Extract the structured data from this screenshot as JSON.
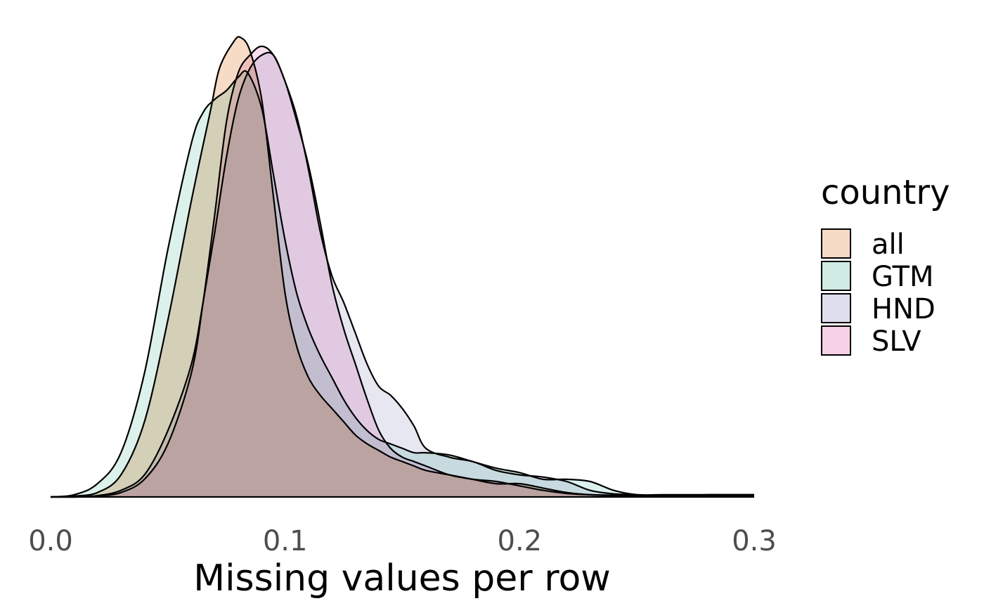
{
  "chart_data": {
    "type": "area",
    "subtype": "density",
    "xlabel": "Missing values per row",
    "ylabel": "",
    "xlim": [
      0.0,
      0.3
    ],
    "ylim": [
      0,
      1.05
    ],
    "y_axis_visible": false,
    "grid": false,
    "x_ticks": [
      0.0,
      0.1,
      0.2,
      0.3
    ],
    "x_tick_labels": [
      "0.0",
      "0.1",
      "0.2",
      "0.3"
    ],
    "legend": {
      "title": "country",
      "position": "right"
    },
    "series": [
      {
        "name": "all",
        "color": "#F6DBC7",
        "x": [
          0.0,
          0.01,
          0.02,
          0.03,
          0.04,
          0.05,
          0.06,
          0.068,
          0.072,
          0.078,
          0.081,
          0.085,
          0.09,
          0.095,
          0.1,
          0.105,
          0.11,
          0.115,
          0.12,
          0.125,
          0.13,
          0.135,
          0.14,
          0.145,
          0.15,
          0.155,
          0.16,
          0.17,
          0.18,
          0.19,
          0.2,
          0.21,
          0.22,
          0.23,
          0.24,
          0.25,
          0.26,
          0.27,
          0.28,
          0.29,
          0.3
        ],
        "y": [
          0.0,
          0.002,
          0.01,
          0.05,
          0.17,
          0.4,
          0.67,
          0.87,
          0.97,
          1.03,
          1.04,
          1.01,
          0.9,
          0.68,
          0.46,
          0.34,
          0.27,
          0.23,
          0.2,
          0.17,
          0.14,
          0.12,
          0.105,
          0.09,
          0.08,
          0.07,
          0.06,
          0.05,
          0.04,
          0.03,
          0.03,
          0.02,
          0.01,
          0.005,
          0.003,
          0.002,
          0.002,
          0.002,
          0.002,
          0.002,
          0.002
        ]
      },
      {
        "name": "GTM",
        "color": "#CFEBE3",
        "x": [
          0.0,
          0.01,
          0.02,
          0.03,
          0.04,
          0.05,
          0.06,
          0.065,
          0.07,
          0.075,
          0.08,
          0.084,
          0.09,
          0.095,
          0.1,
          0.105,
          0.11,
          0.115,
          0.12,
          0.125,
          0.13,
          0.135,
          0.14,
          0.145,
          0.15,
          0.155,
          0.16,
          0.17,
          0.18,
          0.19,
          0.2,
          0.21,
          0.22,
          0.23,
          0.24,
          0.25,
          0.26,
          0.27,
          0.28,
          0.29,
          0.3
        ],
        "y": [
          0.0,
          0.005,
          0.03,
          0.1,
          0.28,
          0.56,
          0.8,
          0.87,
          0.9,
          0.92,
          0.95,
          0.96,
          0.88,
          0.73,
          0.58,
          0.46,
          0.38,
          0.32,
          0.27,
          0.22,
          0.18,
          0.15,
          0.13,
          0.12,
          0.11,
          0.1,
          0.1,
          0.095,
          0.08,
          0.065,
          0.055,
          0.04,
          0.04,
          0.035,
          0.015,
          0.005,
          0.005,
          0.005,
          0.005,
          0.005,
          0.005
        ]
      },
      {
        "name": "HND",
        "color": "#DEDEED",
        "x": [
          0.0,
          0.01,
          0.02,
          0.03,
          0.04,
          0.05,
          0.06,
          0.065,
          0.07,
          0.075,
          0.08,
          0.085,
          0.09,
          0.095,
          0.1,
          0.105,
          0.11,
          0.115,
          0.12,
          0.125,
          0.13,
          0.135,
          0.14,
          0.145,
          0.15,
          0.155,
          0.16,
          0.17,
          0.18,
          0.19,
          0.2,
          0.21,
          0.22,
          0.23,
          0.24,
          0.25,
          0.26,
          0.27,
          0.28,
          0.29,
          0.3
        ],
        "y": [
          0.0,
          0.0,
          0.003,
          0.015,
          0.05,
          0.15,
          0.3,
          0.44,
          0.6,
          0.77,
          0.9,
          0.97,
          1.0,
          1.0,
          0.94,
          0.86,
          0.74,
          0.6,
          0.5,
          0.44,
          0.37,
          0.3,
          0.25,
          0.23,
          0.2,
          0.16,
          0.11,
          0.09,
          0.08,
          0.06,
          0.05,
          0.045,
          0.035,
          0.015,
          0.007,
          0.005,
          0.003,
          0.003,
          0.005,
          0.005,
          0.005
        ]
      },
      {
        "name": "SLV",
        "color": "#F7D2E6",
        "x": [
          0.0,
          0.01,
          0.02,
          0.03,
          0.04,
          0.05,
          0.06,
          0.065,
          0.07,
          0.075,
          0.08,
          0.085,
          0.09,
          0.095,
          0.1,
          0.105,
          0.11,
          0.115,
          0.12,
          0.125,
          0.13,
          0.135,
          0.14,
          0.145,
          0.15,
          0.155,
          0.16,
          0.17,
          0.18,
          0.19,
          0.2,
          0.21,
          0.22,
          0.23,
          0.24,
          0.25,
          0.26,
          0.27,
          0.28,
          0.29,
          0.3
        ],
        "y": [
          0.0,
          0.0,
          0.002,
          0.01,
          0.04,
          0.12,
          0.28,
          0.44,
          0.64,
          0.85,
          0.96,
          1.0,
          1.02,
          1.0,
          0.94,
          0.85,
          0.75,
          0.62,
          0.48,
          0.38,
          0.3,
          0.22,
          0.15,
          0.11,
          0.09,
          0.08,
          0.07,
          0.05,
          0.04,
          0.035,
          0.025,
          0.015,
          0.008,
          0.005,
          0.004,
          0.003,
          0.003,
          0.003,
          0.003,
          0.003,
          0.003
        ]
      }
    ]
  }
}
